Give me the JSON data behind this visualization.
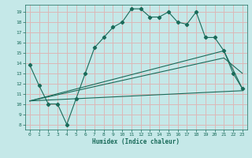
{
  "title": "",
  "xlabel": "Humidex (Indice chaleur)",
  "bg_color": "#c5e8e8",
  "grid_color": "#dbb8b8",
  "line_color": "#1a6b5a",
  "xlim": [
    -0.5,
    23.5
  ],
  "ylim": [
    7.5,
    19.7
  ],
  "xticks": [
    0,
    1,
    2,
    3,
    4,
    5,
    6,
    7,
    8,
    9,
    10,
    11,
    12,
    13,
    14,
    15,
    16,
    17,
    18,
    19,
    20,
    21,
    22,
    23
  ],
  "yticks": [
    8,
    9,
    10,
    11,
    12,
    13,
    14,
    15,
    16,
    17,
    18,
    19
  ],
  "line1_x": [
    0,
    1,
    2,
    3,
    4,
    5,
    6,
    7,
    8,
    9,
    10,
    11,
    12,
    13,
    14,
    15,
    16,
    17,
    18,
    19,
    20,
    21,
    22,
    23
  ],
  "line1_y": [
    13.8,
    11.8,
    10.0,
    10.0,
    8.0,
    10.5,
    13.0,
    15.5,
    16.5,
    17.5,
    18.0,
    19.3,
    19.3,
    18.5,
    18.5,
    19.0,
    18.0,
    17.8,
    19.0,
    16.5,
    16.5,
    15.2,
    13.0,
    11.5
  ],
  "line2_x": [
    0,
    23
  ],
  "line2_y": [
    10.3,
    11.3
  ],
  "line3_x": [
    0,
    21,
    23
  ],
  "line3_y": [
    10.3,
    14.5,
    13.0
  ],
  "line4_x": [
    0,
    21,
    23
  ],
  "line4_y": [
    10.3,
    15.2,
    11.5
  ]
}
